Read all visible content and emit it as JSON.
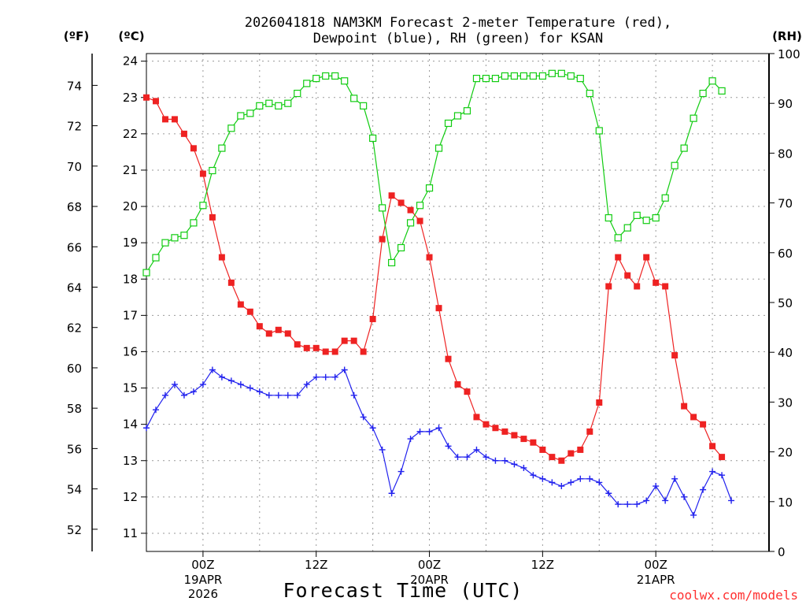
{
  "title_line1": "2026041818 NAM3KM Forecast 2-meter Temperature (red),",
  "title_line2": "Dewpoint (blue), RH (green) for KSAN",
  "axis_units": {
    "fahrenheit": "(ºF)",
    "celsius": "(ºC)",
    "rh": "(RH)"
  },
  "xlabel": "Forecast Time (UTC)",
  "credit": "coolwx.com/models",
  "colors": {
    "temperature": "#ee2222",
    "dewpoint": "#2222ee",
    "rh": "#11cc11"
  },
  "chart_data": {
    "type": "line",
    "x_hours": [
      -6,
      -5,
      -4,
      -3,
      -2,
      -1,
      0,
      1,
      2,
      3,
      4,
      5,
      6,
      7,
      8,
      9,
      10,
      11,
      12,
      13,
      14,
      15,
      16,
      17,
      18,
      19,
      20,
      21,
      22,
      23,
      24,
      25,
      26,
      27,
      28,
      29,
      30,
      31,
      32,
      33,
      34,
      35,
      36,
      37,
      38,
      39,
      40,
      41,
      42,
      43,
      44,
      45,
      46,
      47,
      48,
      49,
      50,
      51,
      52,
      53,
      54,
      55,
      56,
      57,
      58,
      59,
      60
    ],
    "x_start_hour": 0,
    "xlim_hours": [
      -6,
      60
    ],
    "x_ticks": [
      {
        "hour": 0,
        "label": "00Z",
        "sub1": "19APR",
        "sub2": "2026"
      },
      {
        "hour": 12,
        "label": "12Z",
        "sub1": "",
        "sub2": ""
      },
      {
        "hour": 24,
        "label": "00Z",
        "sub1": "20APR",
        "sub2": ""
      },
      {
        "hour": 36,
        "label": "12Z",
        "sub1": "",
        "sub2": ""
      },
      {
        "hour": 48,
        "label": "00Z",
        "sub1": "21APR",
        "sub2": ""
      }
    ],
    "series": [
      {
        "name": "2-meter Temperature",
        "color": "red",
        "axis": "celsius",
        "marker": "filled-square",
        "values": [
          23.0,
          22.9,
          22.4,
          22.4,
          22.0,
          21.6,
          20.9,
          19.7,
          18.6,
          17.9,
          17.3,
          17.1,
          16.7,
          16.5,
          16.6,
          16.5,
          16.2,
          16.1,
          16.1,
          16.0,
          16.0,
          16.3,
          16.3,
          16.0,
          16.9,
          19.1,
          20.3,
          20.1,
          19.9,
          19.6,
          18.6,
          17.2,
          15.8,
          15.1,
          14.9,
          14.2,
          14.0,
          13.9,
          13.8,
          13.7,
          13.6,
          13.5,
          13.3,
          13.1,
          13.0,
          13.2,
          13.3,
          13.8,
          14.6,
          17.8,
          18.6,
          18.1,
          17.8,
          18.6,
          17.9,
          17.8,
          15.9,
          14.5,
          14.2,
          14.0,
          13.4,
          13.1
        ]
      },
      {
        "name": "Dewpoint",
        "color": "blue",
        "axis": "celsius",
        "marker": "plus",
        "values": [
          13.9,
          14.4,
          14.8,
          15.1,
          14.8,
          14.9,
          15.1,
          15.5,
          15.3,
          15.2,
          15.1,
          15.0,
          14.9,
          14.8,
          14.8,
          14.8,
          14.8,
          15.1,
          15.3,
          15.3,
          15.3,
          15.5,
          14.8,
          14.2,
          13.9,
          13.3,
          12.1,
          12.7,
          13.6,
          13.8,
          13.8,
          13.9,
          13.4,
          13.1,
          13.1,
          13.3,
          13.1,
          13.0,
          13.0,
          12.9,
          12.8,
          12.6,
          12.5,
          12.4,
          12.3,
          12.4,
          12.5,
          12.5,
          12.4,
          12.1,
          11.8,
          11.8,
          11.8,
          11.9,
          12.3,
          11.9,
          12.5,
          12.0,
          11.5,
          12.2,
          12.7,
          12.6,
          11.9
        ]
      },
      {
        "name": "RH",
        "color": "green",
        "axis": "rh",
        "marker": "open-square",
        "values": [
          56,
          59,
          62,
          63,
          63.5,
          66,
          69.5,
          76.5,
          81,
          85,
          87.5,
          88,
          89.5,
          90,
          89.5,
          90,
          92,
          94,
          95,
          95.5,
          95.5,
          94.5,
          91,
          89.5,
          83,
          69,
          58,
          61,
          66,
          69.5,
          73,
          81,
          86,
          87.5,
          88.5,
          95,
          95,
          95,
          95.5,
          95.5,
          95.5,
          95.5,
          95.5,
          96,
          96,
          95.5,
          95,
          92,
          84.5,
          67,
          63,
          65,
          67.5,
          66.5,
          67,
          71,
          77.5,
          81,
          87,
          92,
          94.5,
          92.5
        ]
      }
    ],
    "y_celsius": {
      "range": [
        11,
        24
      ],
      "ticks": [
        11,
        12,
        13,
        14,
        15,
        16,
        17,
        18,
        19,
        20,
        21,
        22,
        23,
        24
      ]
    },
    "y_fahrenheit": {
      "range": [
        51.8,
        75.2
      ],
      "ticks": [
        52,
        54,
        56,
        58,
        60,
        62,
        64,
        66,
        68,
        70,
        72,
        74
      ]
    },
    "y_rh": {
      "range": [
        0,
        100
      ],
      "ticks": [
        0,
        10,
        20,
        30,
        40,
        50,
        60,
        70,
        80,
        90,
        100
      ]
    }
  }
}
